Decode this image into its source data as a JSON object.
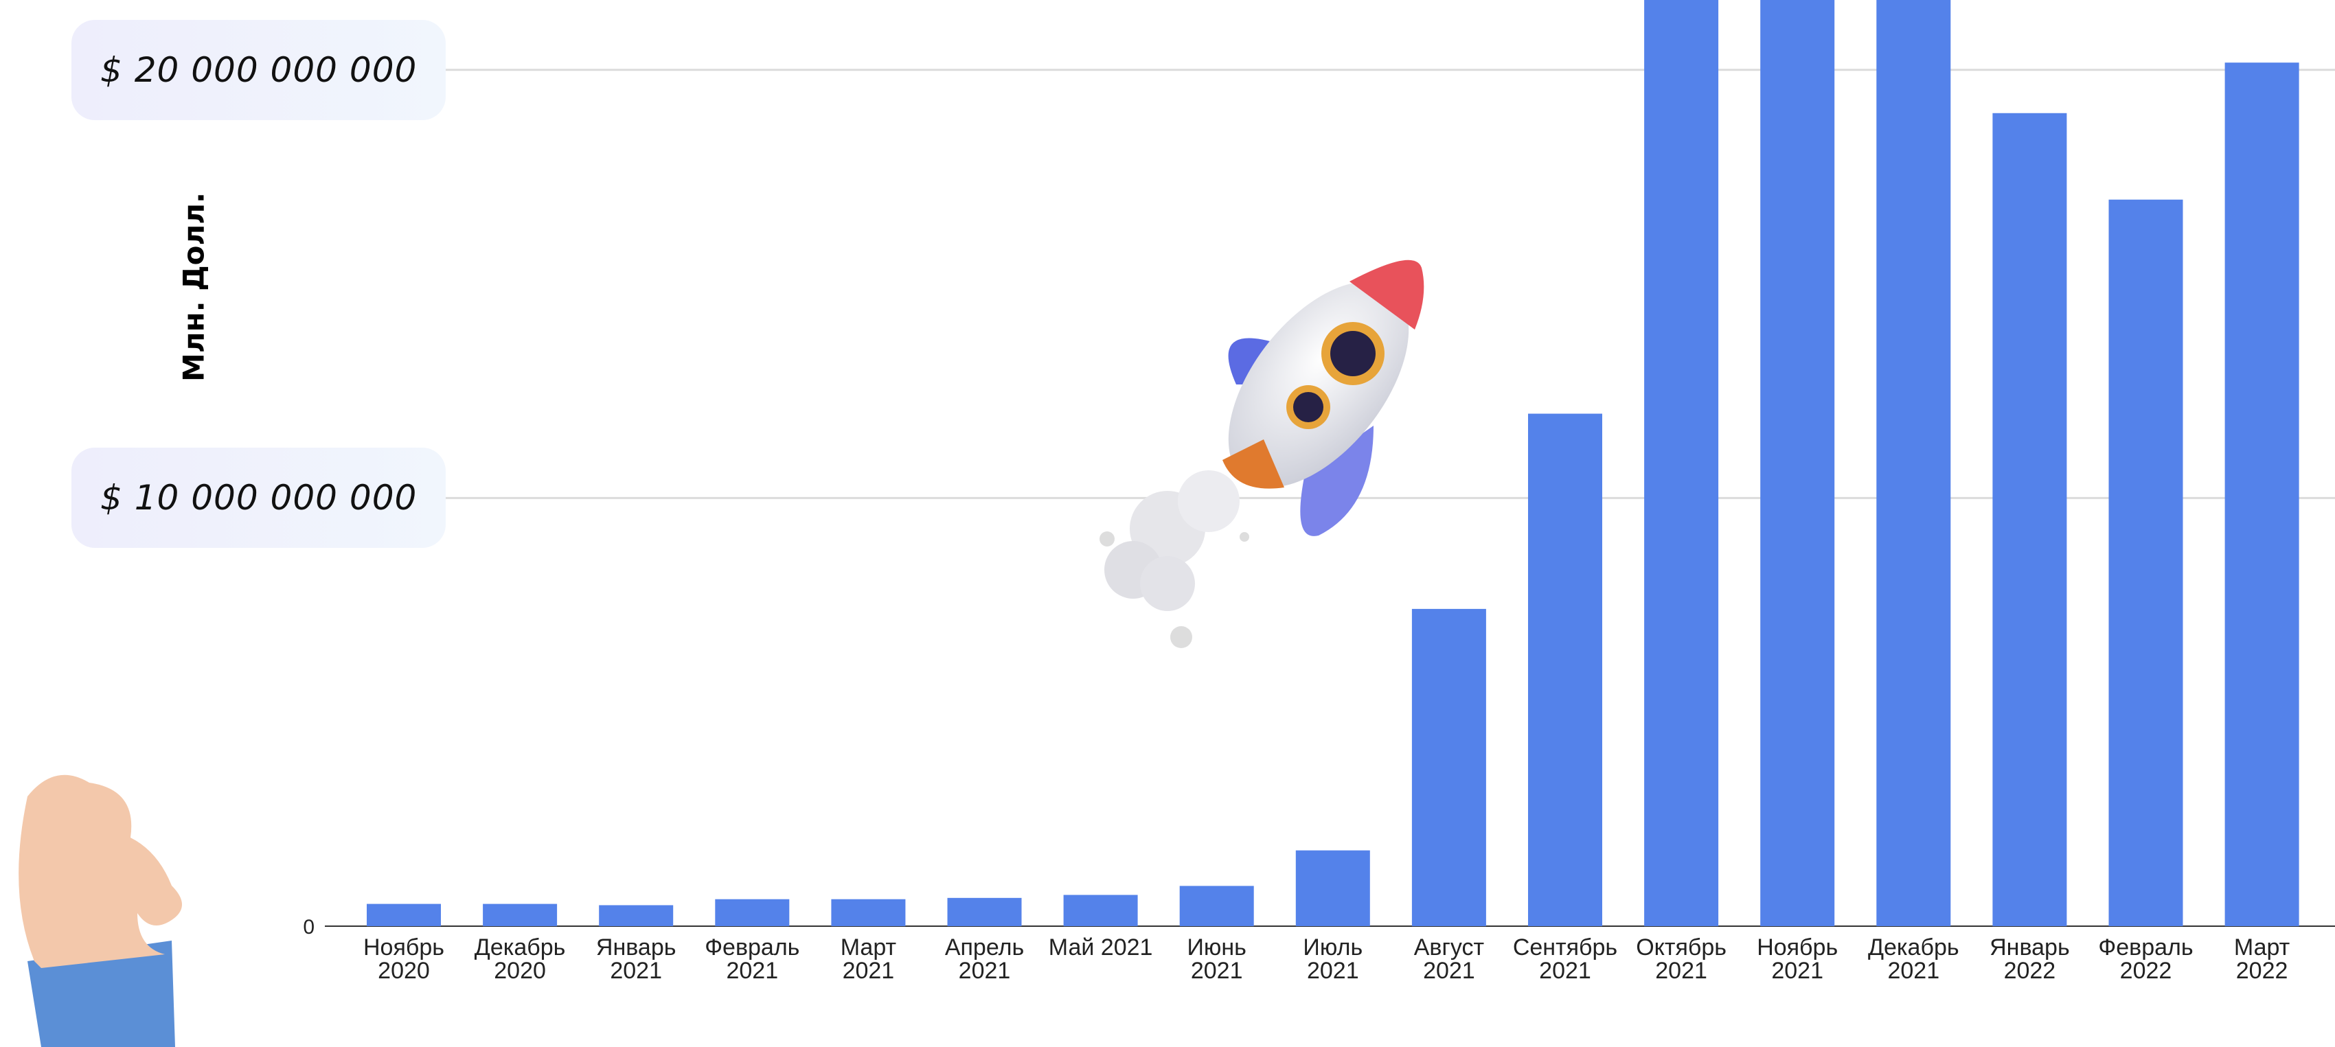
{
  "chart_data": {
    "type": "bar",
    "y_axis_label": "Млн. Долл.",
    "categories": [
      "Ноябрь 2020",
      "Декабрь 2020",
      "Январь 2021",
      "Февраль 2021",
      "Март 2021",
      "Апрель 2021",
      "Май 2021",
      "Июнь 2021",
      "Июль 2021",
      "Август 2021",
      "Сентябрь 2021",
      "Октябрь 2021",
      "Ноябрь 2021",
      "Декабрь 2021",
      "Январь 2022",
      "Февраль 2022",
      "Март 2022"
    ],
    "values": [
      520000000,
      520000000,
      490000000,
      630000000,
      630000000,
      660000000,
      730000000,
      940000000,
      1770000000,
      7410000000,
      11970000000,
      22000000000,
      22000000000,
      22000000000,
      18990000000,
      16970000000,
      20170000000
    ],
    "color": "#5482ea",
    "ylim": [
      0,
      21600000000
    ],
    "yticks": [
      0,
      {
        "value": 10000000000,
        "label": "$ 10 000 000 000"
      },
      {
        "value": 20000000000,
        "label": "$ 20 000 000 000"
      }
    ],
    "grid": true
  }
}
